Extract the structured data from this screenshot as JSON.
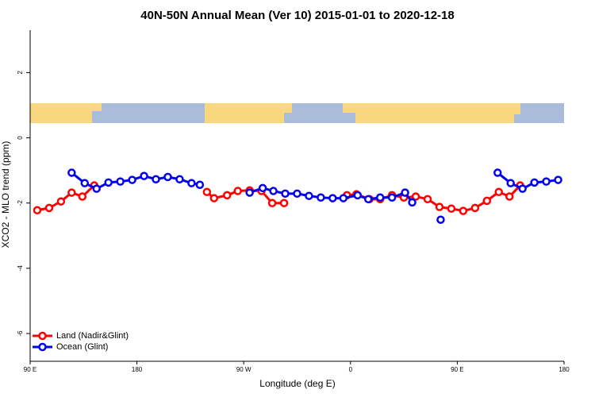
{
  "chart_data": {
    "type": "line",
    "title": "40N-50N Annual Mean (Ver 10)   2015-01-01 to 2020-12-18",
    "x_label": "Longitude (deg E)",
    "y_label": "XCO2 - MLO trend (ppm)",
    "xlim": [
      90,
      540
    ],
    "xticks": [
      {
        "value": 90,
        "label": "90 E"
      },
      180,
      {
        "value": 270,
        "label": "90 W"
      },
      {
        "value": 360,
        "label": "0"
      },
      {
        "value": 450,
        "label": "90 E"
      },
      {
        "value": 540,
        "label": "180"
      }
    ],
    "ylim": [
      -6.85,
      3.3
    ],
    "yticks": [
      -6,
      -4,
      -2,
      0,
      2
    ],
    "legend": "bottomleft",
    "series": [
      {
        "name": "Land (Nadir&Glint)",
        "color": "#ff0000",
        "x": [
          96,
          106,
          116,
          125,
          134,
          144,
          null,
          239,
          245,
          256,
          265,
          275,
          285,
          294,
          304,
          null,
          357,
          365,
          376,
          385,
          395,
          405,
          415,
          425,
          435,
          445,
          455,
          465,
          475,
          485,
          494,
          503
        ],
        "values": [
          -2.22,
          -2.15,
          -1.95,
          -1.68,
          -1.8,
          -1.46,
          null,
          -1.66,
          -1.85,
          -1.76,
          -1.63,
          -1.61,
          -1.63,
          -2.0,
          -2.0,
          null,
          -1.76,
          -1.73,
          -1.88,
          -1.88,
          -1.76,
          -1.83,
          -1.8,
          -1.88,
          -2.12,
          -2.17,
          -2.24,
          -2.15,
          -1.93,
          -1.66,
          -1.8,
          -1.46
        ]
      },
      {
        "name": "Ocean (Glint)",
        "color": "#0000ee",
        "x": [
          125,
          136,
          146,
          156,
          166,
          176,
          186,
          196,
          206,
          216,
          226,
          233,
          null,
          275,
          286,
          295,
          305,
          315,
          325,
          335,
          345,
          354,
          366,
          375,
          385,
          395,
          406,
          412,
          null,
          436,
          null,
          484,
          495,
          505,
          515,
          525,
          535
        ],
        "values": [
          -1.07,
          -1.39,
          -1.56,
          -1.37,
          -1.34,
          -1.29,
          -1.17,
          -1.27,
          -1.2,
          -1.27,
          -1.39,
          -1.44,
          null,
          -1.68,
          -1.54,
          -1.63,
          -1.71,
          -1.71,
          -1.78,
          -1.83,
          -1.85,
          -1.85,
          -1.76,
          -1.88,
          -1.83,
          -1.83,
          -1.68,
          -1.98,
          null,
          -2.51,
          null,
          -1.07,
          -1.39,
          -1.56,
          -1.37,
          -1.34,
          -1.29
        ]
      }
    ]
  }
}
